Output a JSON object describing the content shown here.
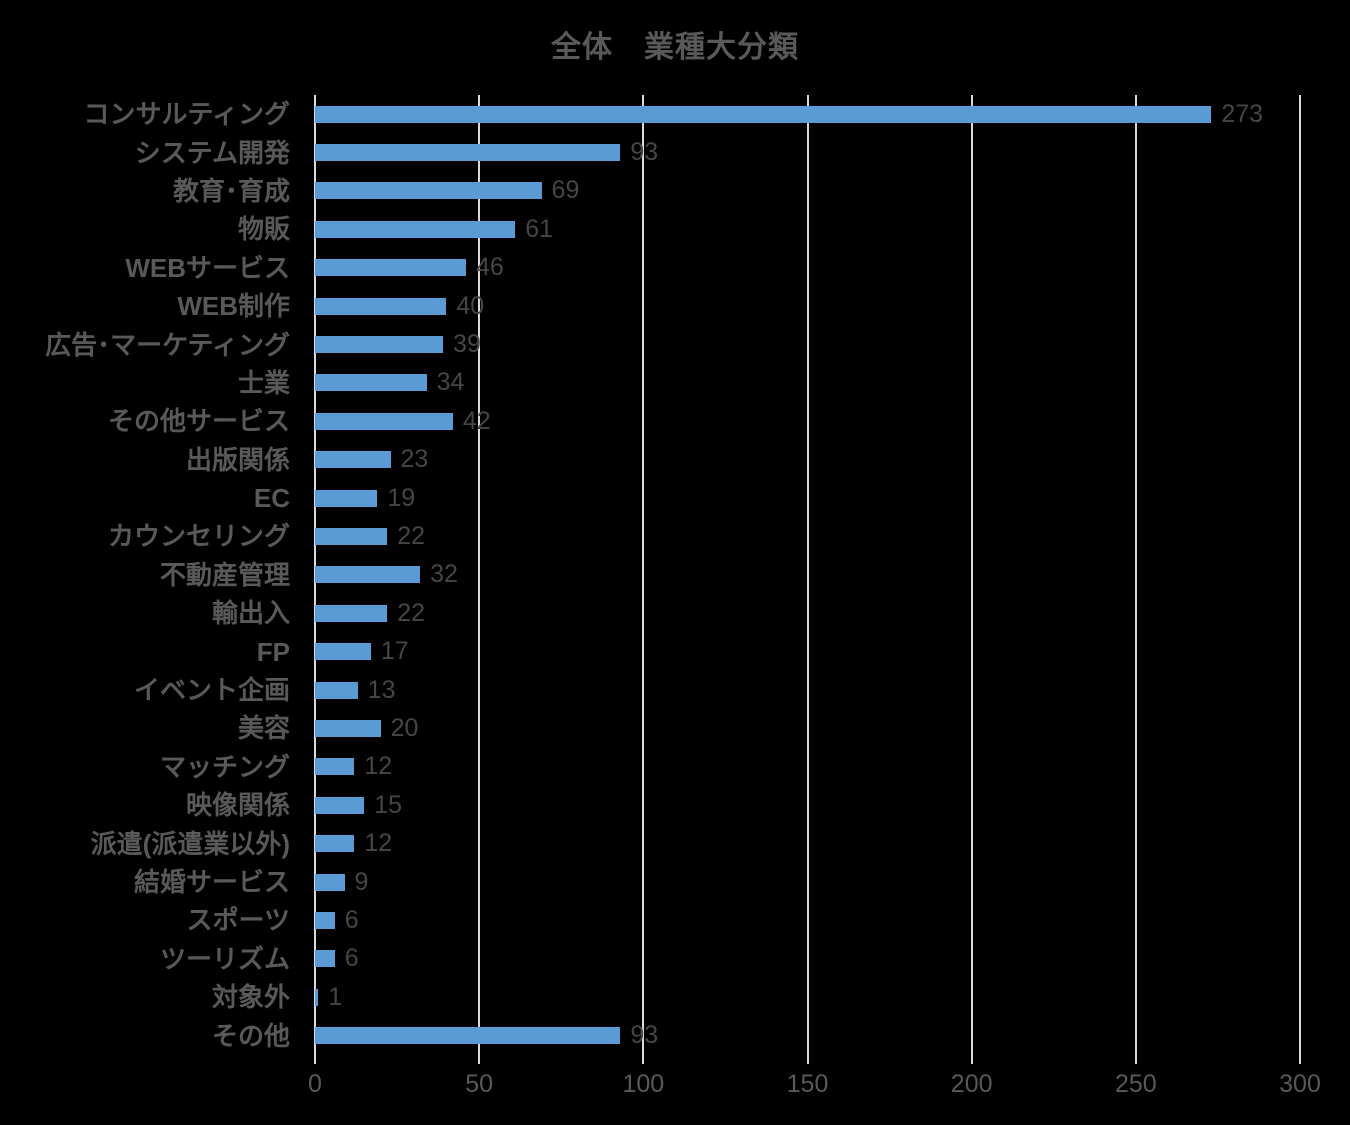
{
  "chart_data": {
    "type": "bar",
    "orientation": "horizontal",
    "title": "全体　業種大分類",
    "categories": [
      "コンサルティング",
      "システム開発",
      "教育･育成",
      "物販",
      "WEBサービス",
      "WEB制作",
      "広告･マーケティング",
      "士業",
      "その他サービス",
      "出版関係",
      "EC",
      "カウンセリング",
      "不動産管理",
      "輸出入",
      "FP",
      "イベント企画",
      "美容",
      "マッチング",
      "映像関係",
      "派遣(派遣業以外)",
      "結婚サービス",
      "スポーツ",
      "ツーリズム",
      "対象外",
      "その他"
    ],
    "values": [
      273,
      93,
      69,
      61,
      46,
      40,
      39,
      34,
      42,
      23,
      19,
      22,
      32,
      22,
      17,
      13,
      20,
      12,
      15,
      12,
      9,
      6,
      6,
      1,
      93
    ],
    "x_ticks": [
      "0",
      "50",
      "100",
      "150",
      "200",
      "250",
      "300"
    ],
    "x_tick_values": [
      0,
      50,
      100,
      150,
      200,
      250,
      300
    ],
    "xlim": [
      0,
      300
    ],
    "grid": true,
    "data_labels": true,
    "legend": "none",
    "colors": {
      "bar": "#5B9BD5",
      "gridline": "#D9D9D9",
      "axis_text": "#595959",
      "category_text": "#595959",
      "value_text": "#464646",
      "title_text": "#595959",
      "background": "#000000"
    }
  }
}
